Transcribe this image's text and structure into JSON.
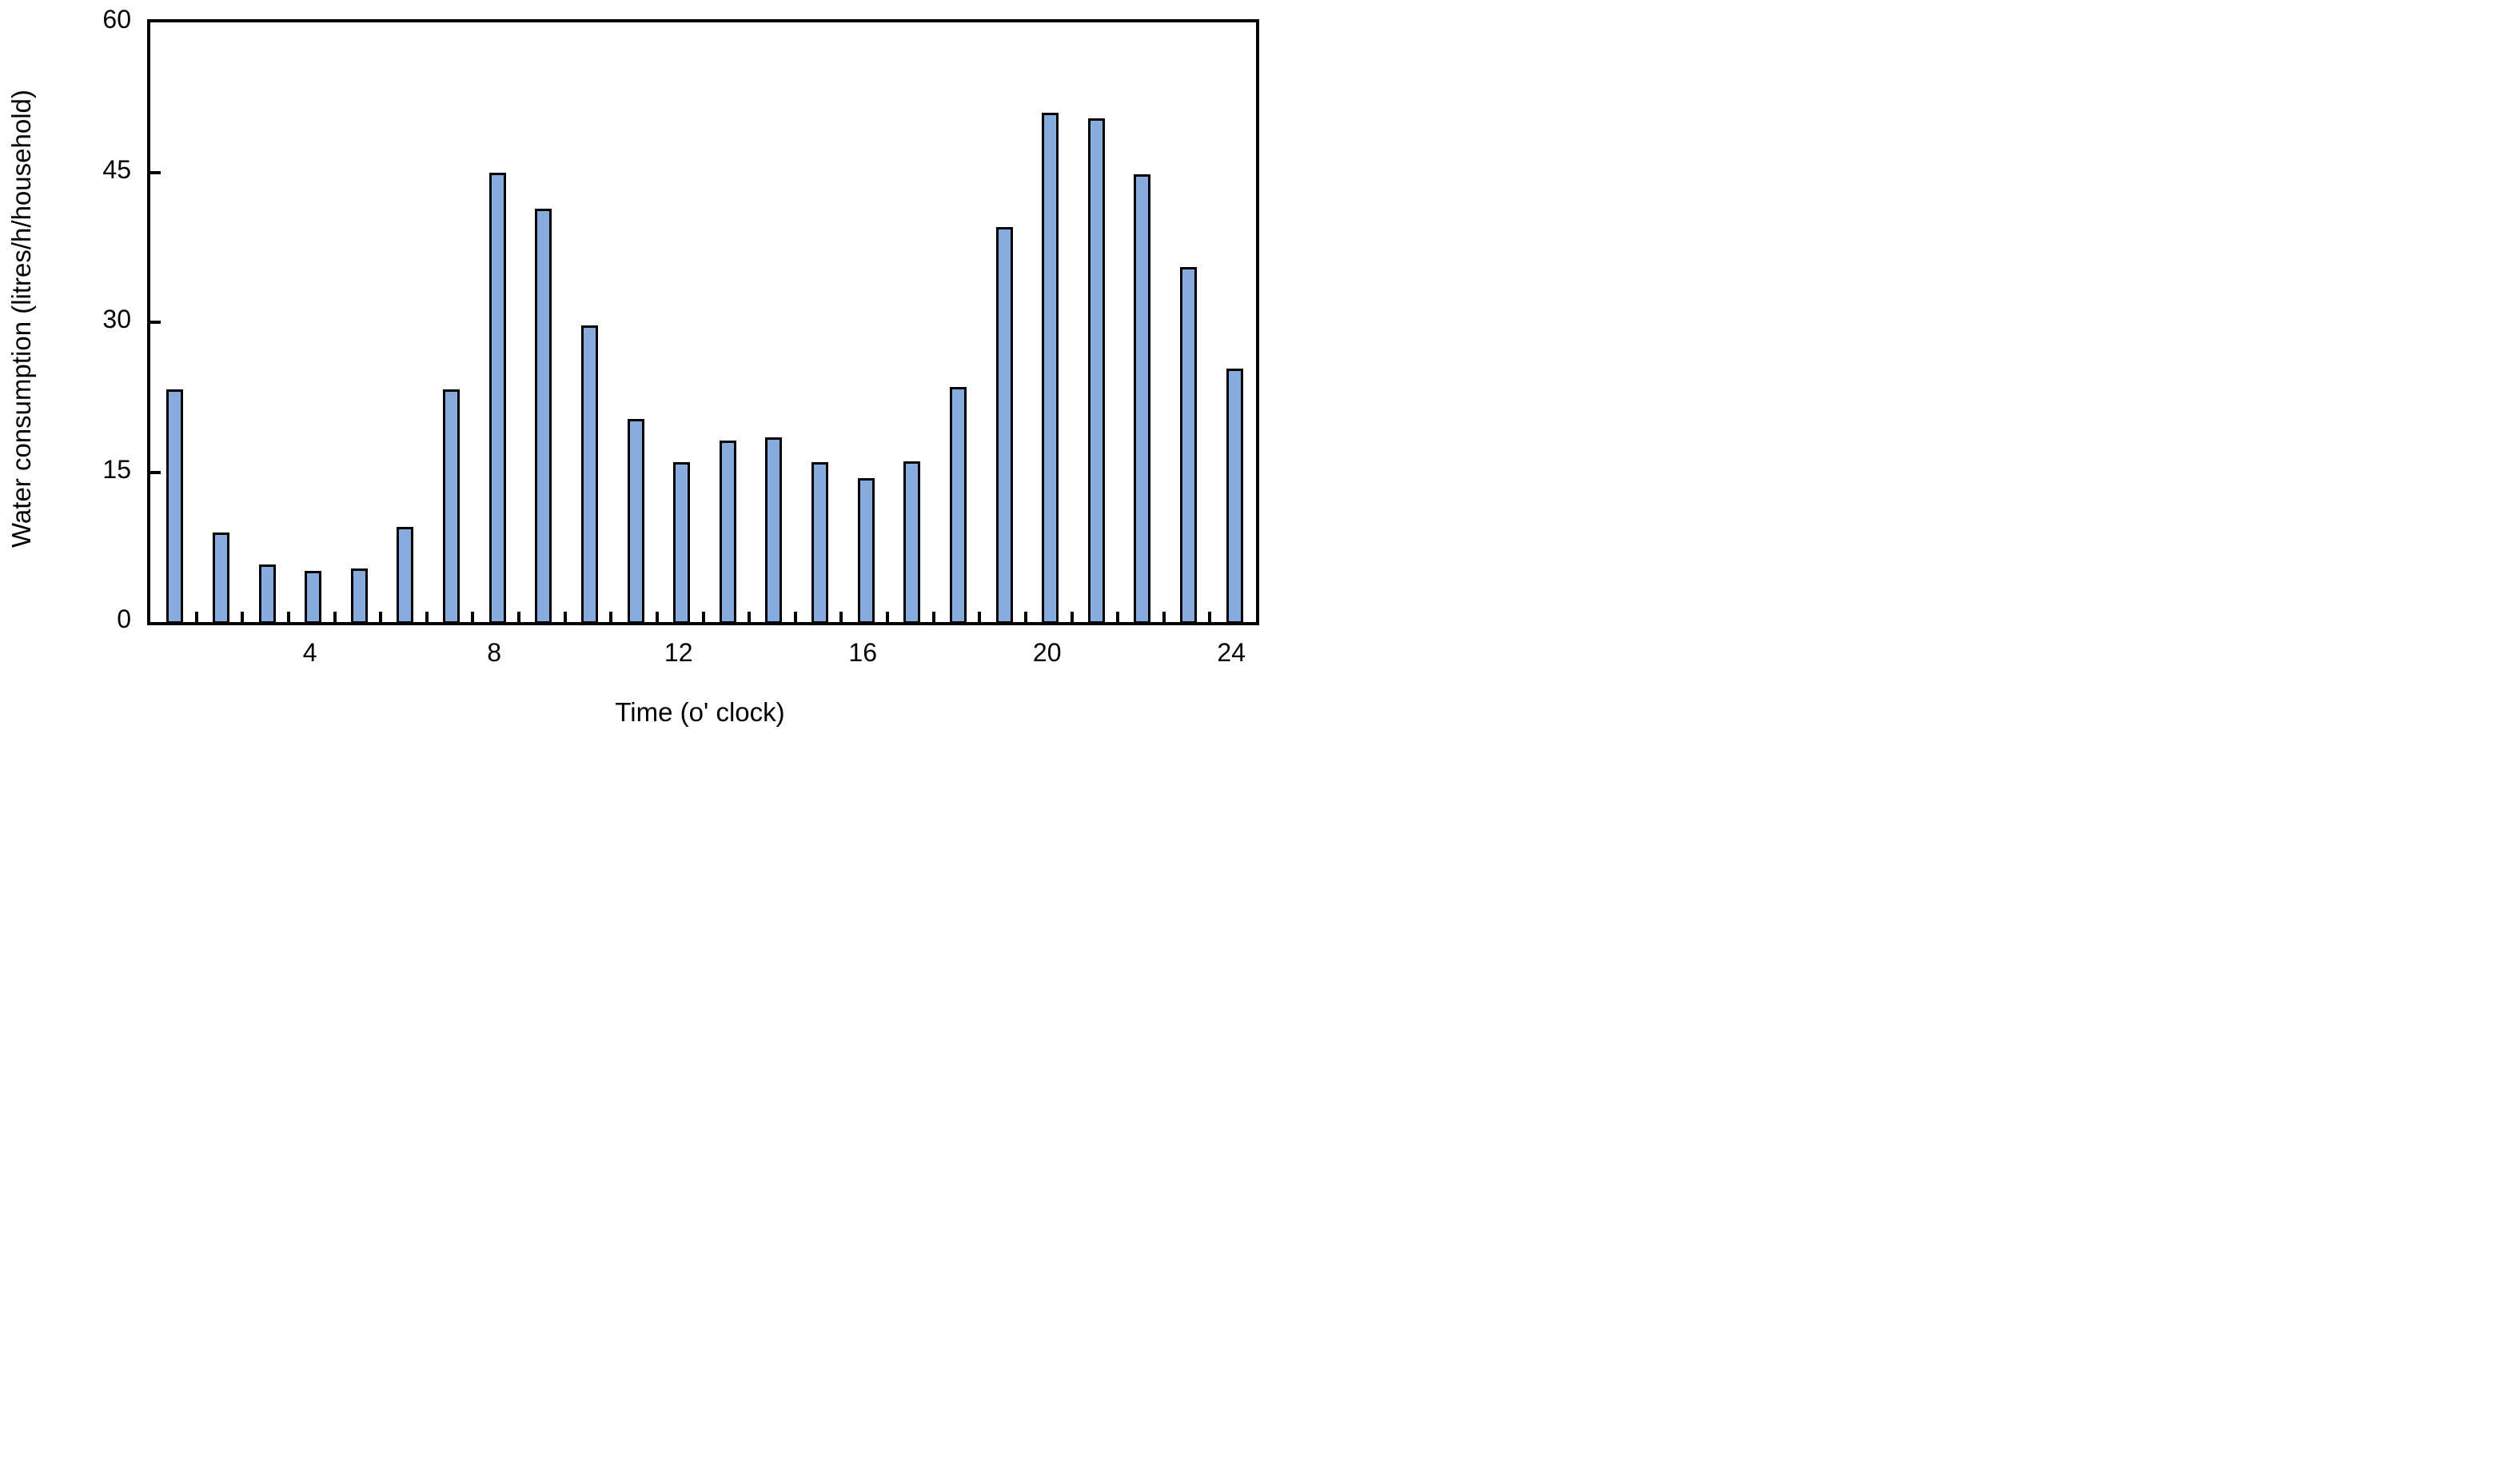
{
  "chart_data": {
    "type": "bar",
    "title": "",
    "xlabel": "Time (o' clock)",
    "ylabel": "Water consumption (litres/h/household)",
    "categories": [
      1,
      2,
      3,
      4,
      5,
      6,
      7,
      8,
      9,
      10,
      11,
      12,
      13,
      14,
      15,
      16,
      17,
      18,
      19,
      20,
      21,
      22,
      23,
      24
    ],
    "values": [
      23.3,
      9.0,
      5.8,
      5.1,
      5.4,
      9.5,
      23.3,
      45.0,
      41.4,
      29.7,
      20.3,
      16.0,
      18.2,
      18.5,
      16.0,
      14.4,
      16.1,
      23.5,
      39.5,
      51.0,
      50.4,
      44.8,
      35.5,
      25.4
    ],
    "ylim": [
      0,
      60
    ],
    "yticks": [
      0,
      15,
      30,
      45,
      60
    ],
    "xtick_labels": [
      "4",
      "8",
      "12",
      "16",
      "20",
      "24"
    ],
    "xtick_label_positions": [
      4,
      8,
      12,
      16,
      20,
      24
    ],
    "bar_color": "#88ABDE",
    "bar_border_color": "#000000",
    "axis_color": "#000000",
    "background_color": "#FFFFFF",
    "grid": false,
    "legend_position": "none"
  }
}
